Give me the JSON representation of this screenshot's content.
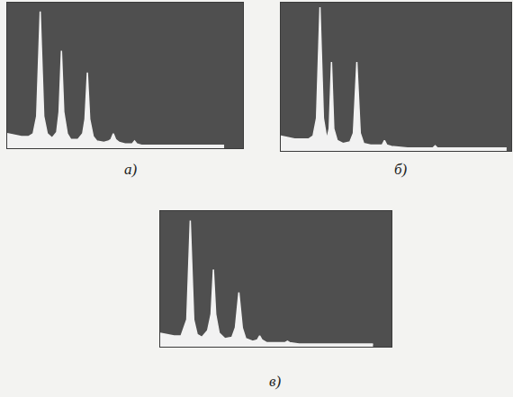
{
  "chart_data": [
    {
      "type": "line",
      "title": "а)",
      "x": [
        0,
        3,
        6,
        9,
        11,
        12.5,
        14,
        15.5,
        17,
        19,
        21,
        22,
        23,
        24,
        25.5,
        27,
        30,
        32,
        33,
        34,
        35,
        36.5,
        38,
        41,
        43,
        44,
        45,
        46,
        47.5,
        50,
        52,
        53,
        54,
        55,
        57,
        60,
        70,
        80,
        92
      ],
      "values": [
        10,
        9,
        8,
        8,
        10,
        22,
        94,
        22,
        10,
        7,
        11,
        25,
        67,
        25,
        10,
        6,
        6,
        10,
        20,
        52,
        20,
        8,
        5,
        4,
        5,
        6,
        10,
        6,
        4,
        3,
        3,
        3,
        5,
        3,
        2,
        2,
        2,
        2,
        2
      ],
      "color": "#f2f2f2",
      "xlim": [
        0,
        100
      ],
      "ylim": [
        0,
        100
      ],
      "tick_labels": false,
      "grid": false
    },
    {
      "type": "line",
      "title": "б)",
      "x": [
        0,
        3,
        6,
        9,
        12,
        14,
        15.5,
        17,
        18.5,
        20,
        21,
        22,
        23,
        24.5,
        27,
        30,
        31.5,
        33,
        34.5,
        36,
        39,
        42,
        44,
        45,
        46,
        48,
        55,
        62,
        66,
        67,
        68,
        75,
        85,
        98
      ],
      "values": [
        10,
        9,
        8,
        8,
        8,
        10,
        22,
        97,
        22,
        8,
        15,
        60,
        15,
        7,
        5,
        6,
        12,
        60,
        12,
        5,
        4,
        4,
        4,
        7,
        4,
        3,
        2,
        2,
        2,
        3.5,
        2,
        2,
        2,
        2
      ],
      "color": "#f2f2f2",
      "xlim": [
        0,
        100
      ],
      "ylim": [
        0,
        100
      ],
      "tick_labels": false,
      "grid": false
    },
    {
      "type": "line",
      "title": "в)",
      "x": [
        0,
        3,
        6,
        9,
        11.5,
        13,
        14.5,
        16,
        18,
        20.5,
        22,
        23,
        24,
        25.5,
        28,
        31,
        32.5,
        34,
        35.5,
        37,
        40,
        42,
        43,
        44,
        46,
        50,
        54,
        55,
        56,
        60,
        70,
        80,
        92
      ],
      "values": [
        10,
        9,
        8,
        8,
        20,
        93,
        20,
        9,
        7,
        12,
        24,
        57,
        24,
        10,
        6,
        7,
        14,
        40,
        14,
        6,
        4,
        5,
        8,
        5,
        3,
        3,
        3,
        4,
        3,
        2,
        2,
        2,
        2
      ],
      "color": "#f2f2f2",
      "xlim": [
        0,
        100
      ],
      "ylim": [
        0,
        100
      ],
      "tick_labels": false,
      "grid": false
    }
  ]
}
